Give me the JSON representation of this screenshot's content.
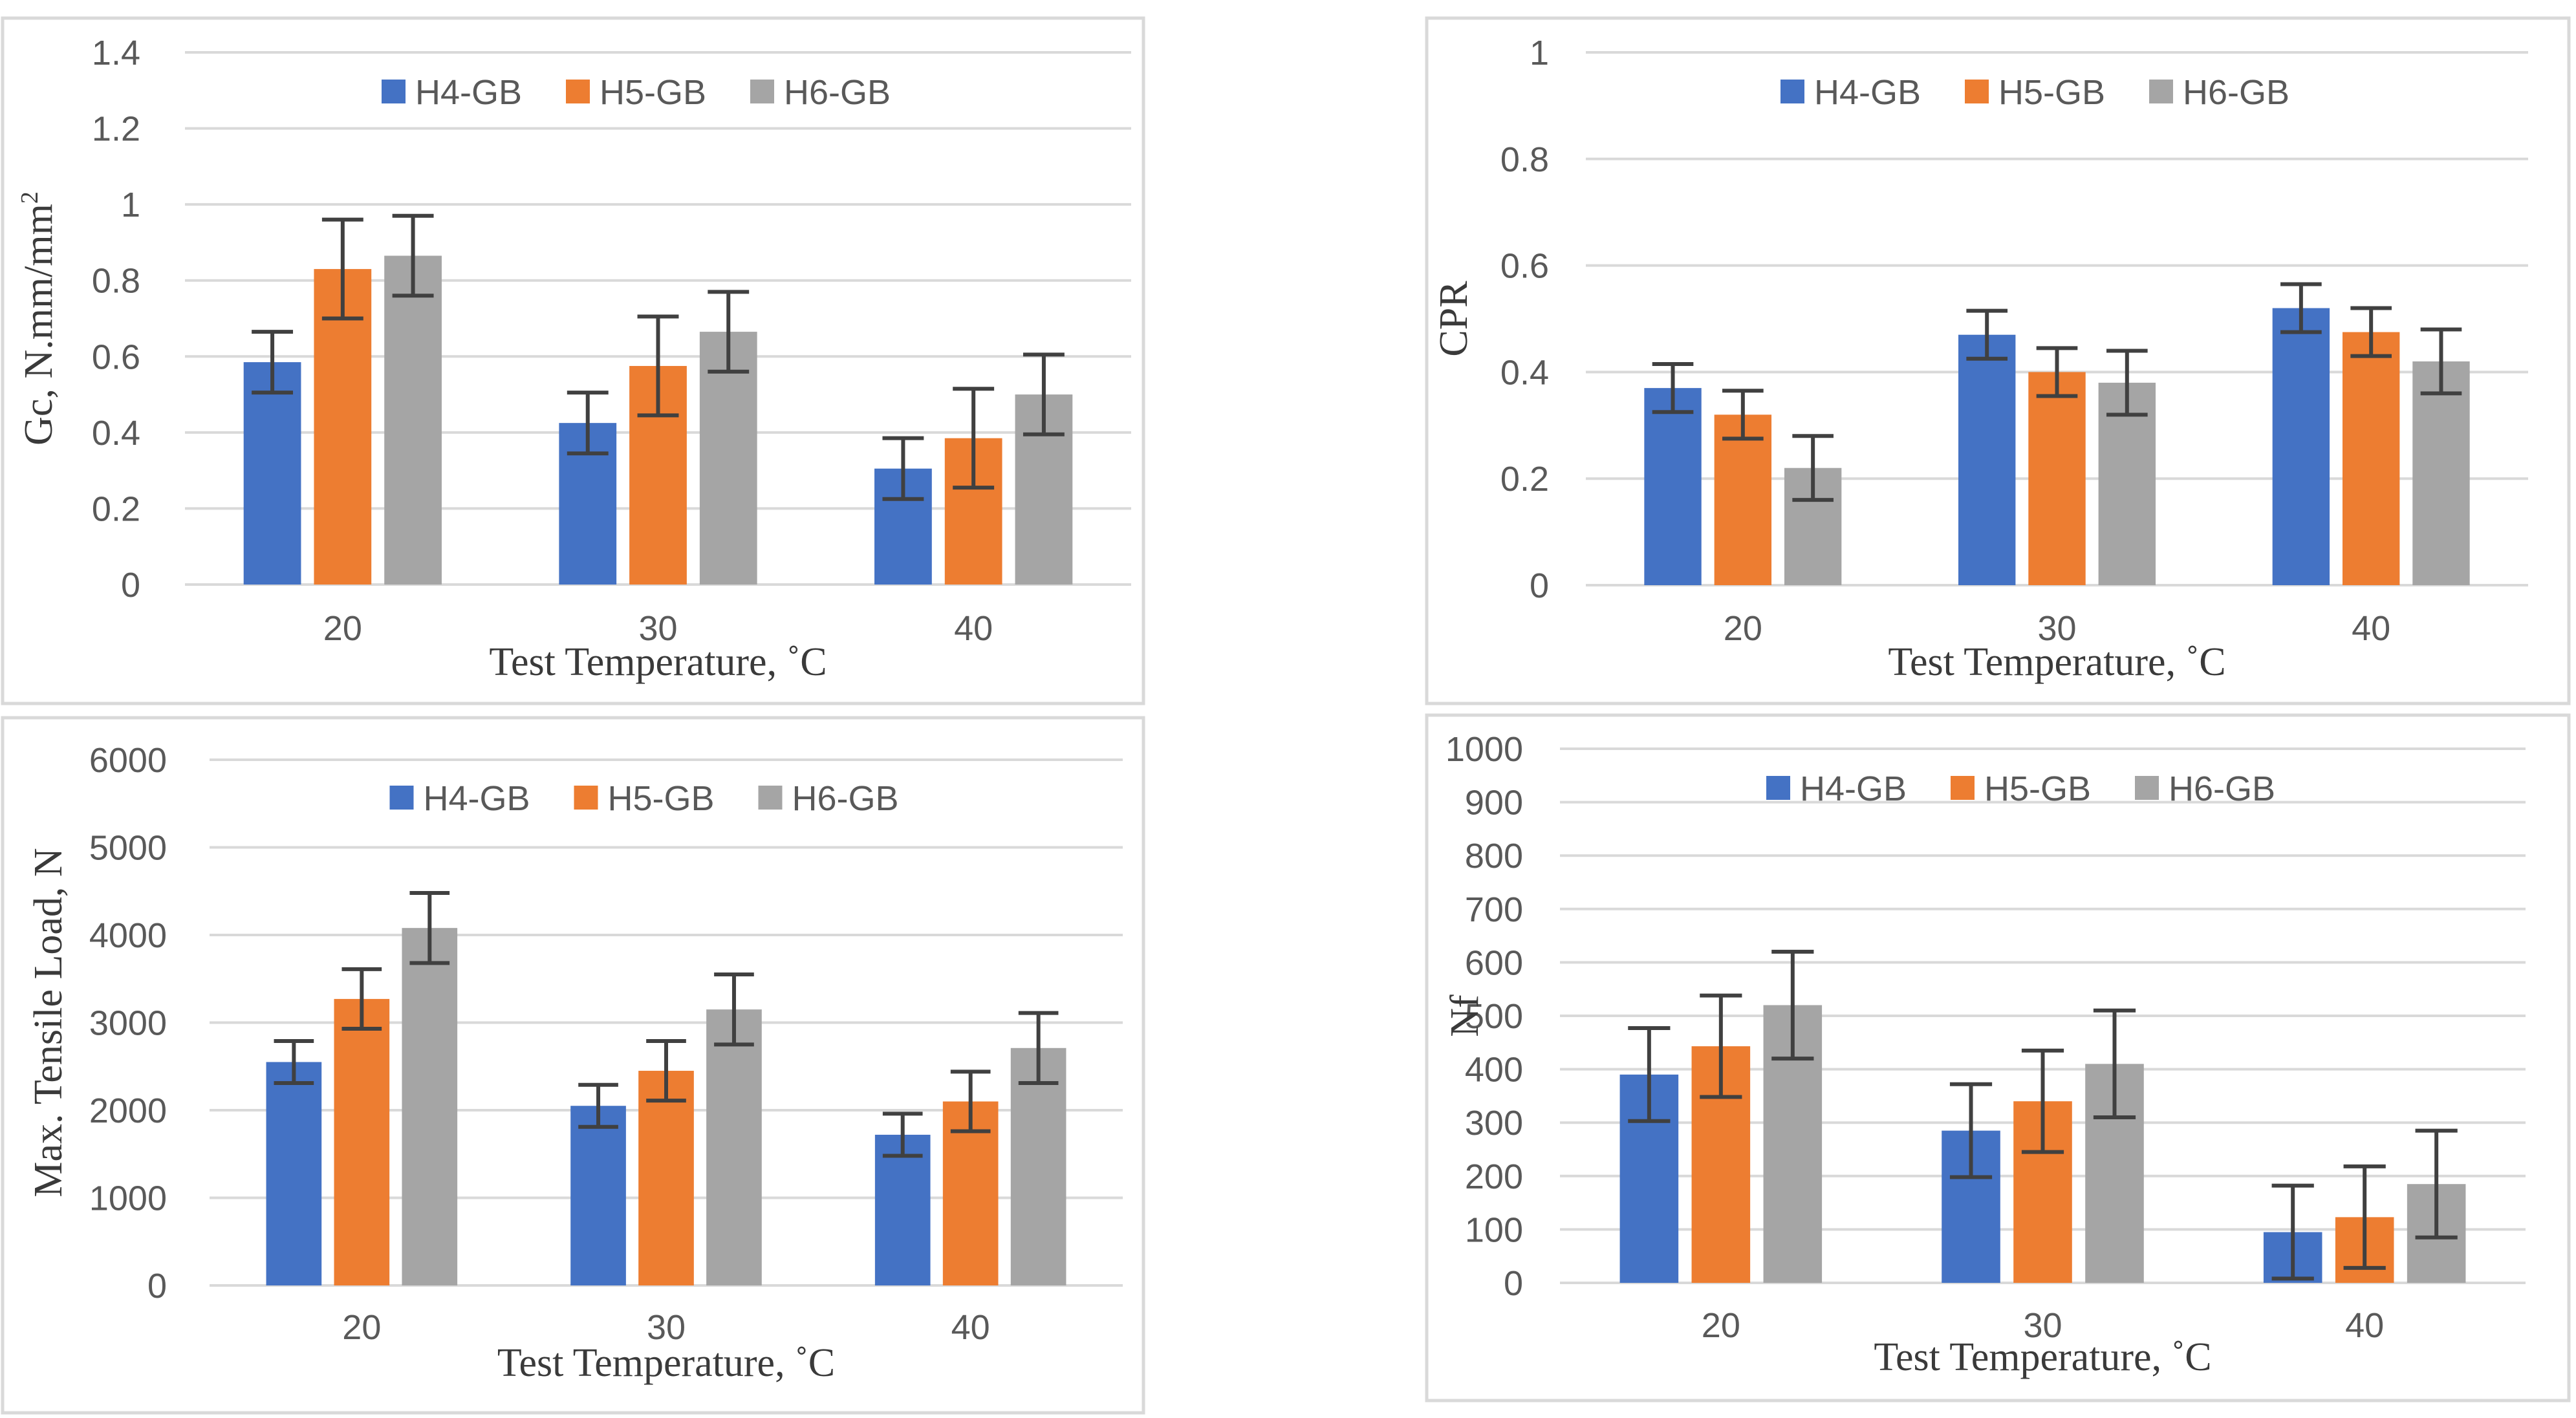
{
  "colors": {
    "H4-GB": "#4472C4",
    "H5-GB": "#ED7D31",
    "H6-GB": "#A5A5A5",
    "grid": "#D9D9D9",
    "error": "#404040",
    "frame": "#D9D9D9"
  },
  "chart_data": [
    {
      "type": "bar",
      "categories": [
        "20",
        "30",
        "40"
      ],
      "series": [
        {
          "name": "H4-GB",
          "values": [
            0.585,
            0.425,
            0.305
          ],
          "errors": [
            0.08,
            0.08,
            0.08
          ]
        },
        {
          "name": "H5-GB",
          "values": [
            0.83,
            0.575,
            0.385
          ],
          "errors": [
            0.13,
            0.13,
            0.13
          ]
        },
        {
          "name": "H6-GB",
          "values": [
            0.865,
            0.665,
            0.5
          ],
          "errors": [
            0.105,
            0.105,
            0.105
          ]
        }
      ],
      "ylabel": "Gc, N.mm/mm",
      "ylabel_sup": "2",
      "xlabel": "Test Temperature, ˚C",
      "ylim": [
        0,
        1.4
      ],
      "ytick_labels": [
        "0",
        "0.2",
        "0.4",
        "0.6",
        "0.8",
        "1",
        "1.2",
        "1.4"
      ],
      "legend": "top-center"
    },
    {
      "type": "bar",
      "categories": [
        "20",
        "30",
        "40"
      ],
      "series": [
        {
          "name": "H4-GB",
          "values": [
            0.37,
            0.47,
            0.52
          ],
          "errors": [
            0.045,
            0.045,
            0.045
          ]
        },
        {
          "name": "H5-GB",
          "values": [
            0.32,
            0.4,
            0.475
          ],
          "errors": [
            0.045,
            0.045,
            0.045
          ]
        },
        {
          "name": "H6-GB",
          "values": [
            0.22,
            0.38,
            0.42
          ],
          "errors": [
            0.06,
            0.06,
            0.06
          ]
        }
      ],
      "ylabel": "CPR",
      "xlabel": "Test Temperature, ˚C",
      "ylim": [
        0,
        1
      ],
      "ytick_labels": [
        "0",
        "0.2",
        "0.4",
        "0.6",
        "0.8",
        "1"
      ],
      "legend": "top-center"
    },
    {
      "type": "bar",
      "categories": [
        "20",
        "30",
        "40"
      ],
      "series": [
        {
          "name": "H4-GB",
          "values": [
            2550,
            2050,
            1720
          ],
          "errors": [
            240,
            240,
            240
          ]
        },
        {
          "name": "H5-GB",
          "values": [
            3270,
            2450,
            2100
          ],
          "errors": [
            340,
            340,
            340
          ]
        },
        {
          "name": "H6-GB",
          "values": [
            4080,
            3150,
            2710
          ],
          "errors": [
            400,
            400,
            400
          ]
        }
      ],
      "ylabel": "Max. Tensile Load, N",
      "xlabel": "Test Temperature, ˚C",
      "ylim": [
        0,
        6000
      ],
      "ytick_labels": [
        "0",
        "1000",
        "2000",
        "3000",
        "4000",
        "5000",
        "6000"
      ],
      "legend": "top-center"
    },
    {
      "type": "bar",
      "categories": [
        "20",
        "30",
        "40"
      ],
      "series": [
        {
          "name": "H4-GB",
          "values": [
            390,
            285,
            95
          ],
          "errors": [
            87,
            87,
            87
          ]
        },
        {
          "name": "H5-GB",
          "values": [
            443,
            340,
            123
          ],
          "errors": [
            95,
            95,
            95
          ]
        },
        {
          "name": "H6-GB",
          "values": [
            520,
            410,
            185
          ],
          "errors": [
            100,
            100,
            100
          ]
        }
      ],
      "ylabel": "Nf",
      "xlabel": "Test Temperature, ˚C",
      "ylim": [
        0,
        1000
      ],
      "ytick_labels": [
        "0",
        "100",
        "200",
        "300",
        "400",
        "500",
        "600",
        "700",
        "800",
        "900",
        "1000"
      ],
      "legend": "top-center"
    }
  ]
}
